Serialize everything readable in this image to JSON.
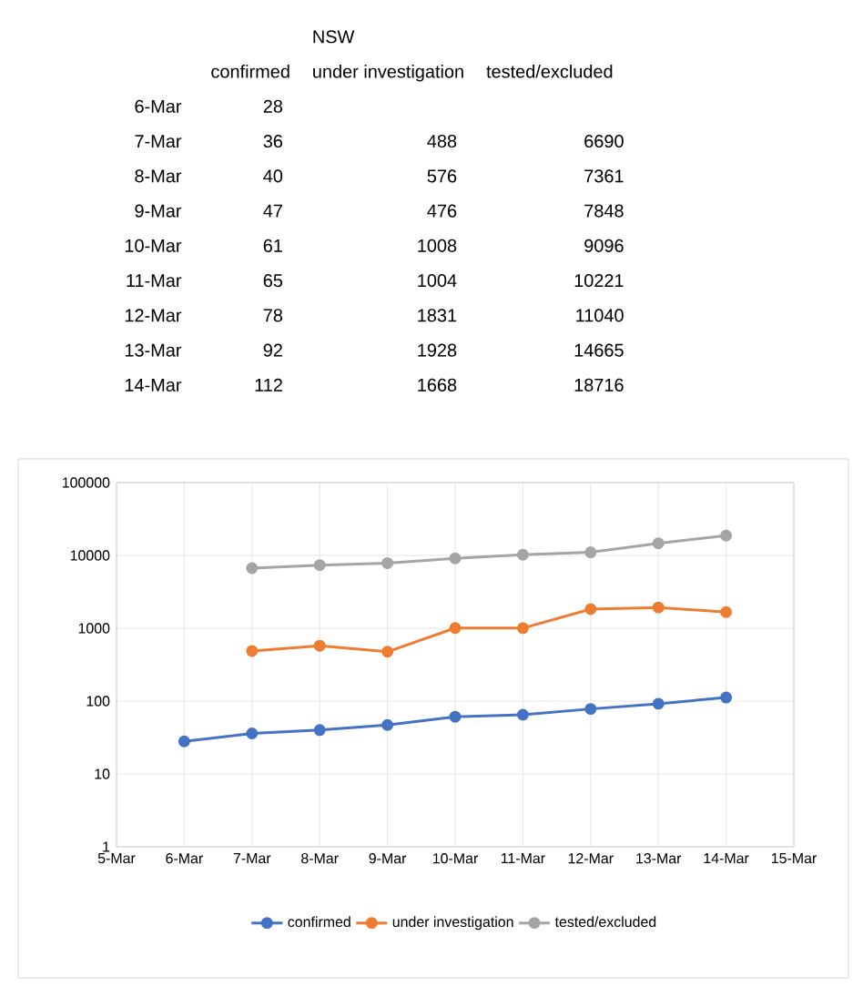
{
  "chart_data": [
    {
      "type": "other",
      "title": "NSW",
      "data_labels": true,
      "categories": [
        "6-Mar",
        "7-Mar",
        "8-Mar",
        "9-Mar",
        "10-Mar",
        "11-Mar",
        "12-Mar",
        "13-Mar",
        "14-Mar"
      ],
      "series": [
        {
          "name": "confirmed",
          "values": [
            28,
            36,
            40,
            47,
            61,
            65,
            78,
            92,
            112
          ]
        },
        {
          "name": "under investigation",
          "values": [
            null,
            488,
            576,
            476,
            1008,
            1004,
            1831,
            1928,
            1668
          ]
        },
        {
          "name": "tested/excluded",
          "values": [
            null,
            6690,
            7361,
            7848,
            9096,
            10221,
            11040,
            14665,
            18716
          ]
        }
      ]
    },
    {
      "type": "line",
      "categories": [
        "5-Mar",
        "6-Mar",
        "7-Mar",
        "8-Mar",
        "9-Mar",
        "10-Mar",
        "11-Mar",
        "12-Mar",
        "13-Mar",
        "14-Mar",
        "15-Mar"
      ],
      "series": [
        {
          "name": "confirmed",
          "color": "#4472c4",
          "values": [
            null,
            28,
            36,
            40,
            47,
            61,
            65,
            78,
            92,
            112,
            null
          ]
        },
        {
          "name": "under investigation",
          "color": "#ed7d31",
          "values": [
            null,
            null,
            488,
            576,
            476,
            1008,
            1004,
            1831,
            1928,
            1668,
            null
          ]
        },
        {
          "name": "tested/excluded",
          "color": "#a5a5a5",
          "values": [
            null,
            null,
            6690,
            7361,
            7848,
            9096,
            10221,
            11040,
            14665,
            18716,
            null
          ]
        }
      ],
      "log": true,
      "ylim": [
        1,
        100000
      ],
      "yticks": [
        1,
        10,
        100,
        1000,
        10000,
        100000
      ],
      "grid": true,
      "legend": "bottom",
      "marker": "circle"
    }
  ]
}
